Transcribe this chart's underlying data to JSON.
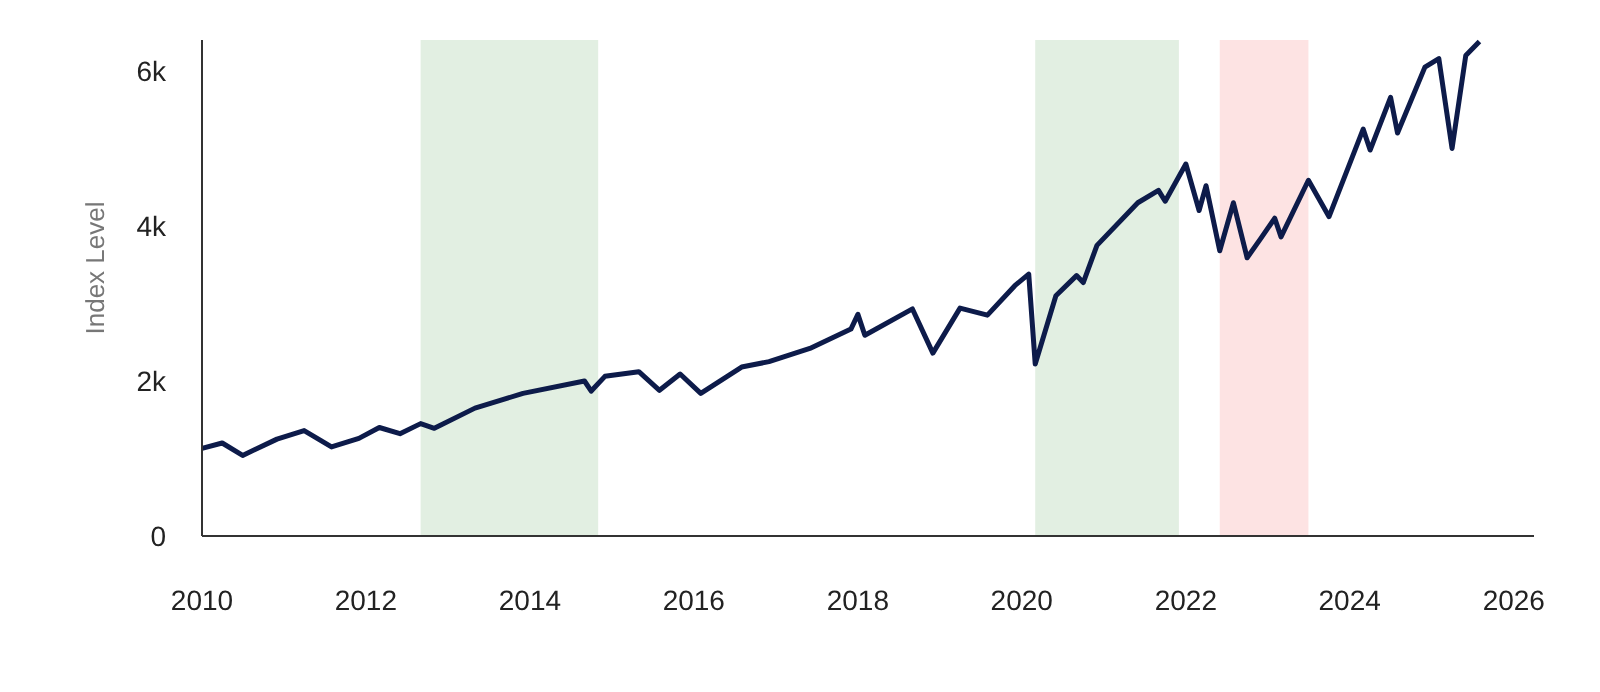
{
  "chart_data": {
    "type": "line",
    "ylabel": "Index Level",
    "x": [
      "2010-01",
      "2010-04",
      "2010-07",
      "2010-12",
      "2011-04",
      "2011-08",
      "2011-12",
      "2012-03",
      "2012-06",
      "2012-09",
      "2012-11",
      "2013-05",
      "2013-12",
      "2014-09",
      "2014-10",
      "2014-12",
      "2015-05",
      "2015-08",
      "2015-11",
      "2016-02",
      "2016-08",
      "2016-12",
      "2017-06",
      "2017-12",
      "2018-01",
      "2018-02",
      "2018-09",
      "2018-12",
      "2019-04",
      "2019-08",
      "2019-12",
      "2020-02",
      "2020-03",
      "2020-06",
      "2020-09",
      "2020-10",
      "2020-12",
      "2021-06",
      "2021-09",
      "2021-10",
      "2022-01",
      "2022-03",
      "2022-04",
      "2022-06",
      "2022-08",
      "2022-10",
      "2022-12",
      "2023-02",
      "2023-03",
      "2023-07",
      "2023-10",
      "2024-03",
      "2024-04",
      "2024-07",
      "2024-08",
      "2024-12",
      "2025-02",
      "2025-04",
      "2025-06",
      "2025-08"
    ],
    "series": [
      {
        "color": "#0d1b4a",
        "values": [
          1130,
          1200,
          1040,
          1250,
          1360,
          1150,
          1260,
          1400,
          1320,
          1450,
          1390,
          1650,
          1840,
          2000,
          1870,
          2060,
          2120,
          1880,
          2090,
          1840,
          2180,
          2250,
          2420,
          2670,
          2860,
          2590,
          2930,
          2360,
          2940,
          2850,
          3230,
          3380,
          2220,
          3100,
          3360,
          3270,
          3750,
          4300,
          4460,
          4320,
          4800,
          4200,
          4520,
          3680,
          4300,
          3590,
          3840,
          4100,
          3860,
          4590,
          4120,
          5250,
          4980,
          5660,
          5200,
          6050,
          6160,
          5000,
          6200,
          6380
        ]
      }
    ],
    "xlim": [
      "2010-01",
      "2026-04"
    ],
    "xticks": [
      "2010",
      "2012",
      "2014",
      "2016",
      "2018",
      "2020",
      "2022",
      "2024",
      "2026"
    ],
    "ylim": [
      0,
      6400
    ],
    "yticks": [
      {
        "value": 0,
        "label": "0"
      },
      {
        "value": 2000,
        "label": "2k"
      },
      {
        "value": 4000,
        "label": "4k"
      },
      {
        "value": 6000,
        "label": "6k"
      }
    ],
    "bands": [
      {
        "axis": "x",
        "from": "2012-09",
        "to": "2014-11",
        "color": "#e2efe2"
      },
      {
        "axis": "x",
        "from": "2020-03",
        "to": "2021-12",
        "color": "#e2efe2"
      },
      {
        "axis": "x",
        "from": "2022-06",
        "to": "2023-07",
        "color": "#fde3e3"
      }
    ],
    "grid": false
  }
}
